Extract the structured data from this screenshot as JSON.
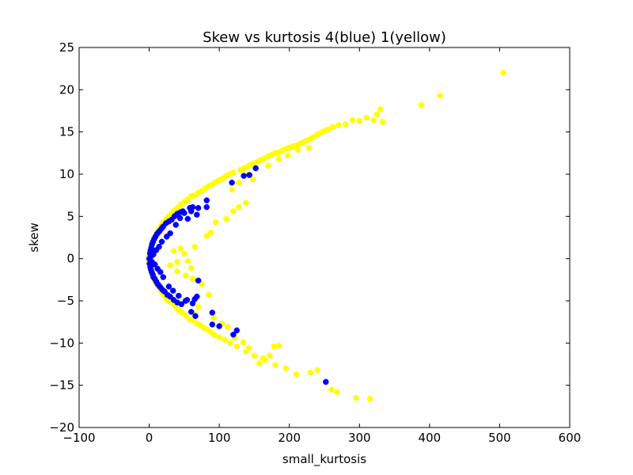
{
  "chart_data": {
    "type": "scatter",
    "title": "Skew vs kurtosis 4(blue) 1(yellow)",
    "xlabel": "small_kurtosis",
    "ylabel": "skew",
    "xlim": [
      -100,
      600
    ],
    "ylim": [
      -20,
      25
    ],
    "xticks": [
      -100,
      0,
      100,
      200,
      300,
      400,
      500,
      600
    ],
    "yticks": [
      -20,
      -15,
      -10,
      -5,
      0,
      5,
      10,
      15,
      20,
      25
    ],
    "xtick_labels": [
      "−100",
      "0",
      "100",
      "200",
      "300",
      "400",
      "500",
      "600"
    ],
    "ytick_labels": [
      "−20",
      "−15",
      "−10",
      "−5",
      "0",
      "5",
      "10",
      "15",
      "20",
      "25"
    ],
    "grid": false,
    "legend": "none",
    "series": [
      {
        "color": "#ffff00",
        "points": [
          [
            0.0,
            -0.5
          ],
          [
            0.5,
            0.4
          ],
          [
            1.0,
            -0.9
          ],
          [
            1.5,
            0.8
          ],
          [
            2.0,
            -1.2
          ],
          [
            2.5,
            1.1
          ],
          [
            3.0,
            -0.2
          ],
          [
            4.0,
            1.6
          ],
          [
            4.5,
            -1.7
          ],
          [
            5.0,
            2.0
          ],
          [
            6.0,
            -2.1
          ],
          [
            7.0,
            2.4
          ],
          [
            8.0,
            -2.6
          ],
          [
            9.0,
            2.7
          ],
          [
            10.0,
            -2.9
          ],
          [
            11.0,
            3.1
          ],
          [
            12.0,
            -3.2
          ],
          [
            14.0,
            3.5
          ],
          [
            15.0,
            -3.6
          ],
          [
            17.0,
            3.9
          ],
          [
            18.0,
            -4.0
          ],
          [
            20.0,
            4.3
          ],
          [
            22.0,
            -4.4
          ],
          [
            24.0,
            4.7
          ],
          [
            25.0,
            -4.9
          ],
          [
            28.0,
            5.0
          ],
          [
            30.0,
            -5.1
          ],
          [
            32.0,
            5.4
          ],
          [
            34.0,
            -5.3
          ],
          [
            36.0,
            5.7
          ],
          [
            38.0,
            -5.8
          ],
          [
            40.0,
            6.0
          ],
          [
            42.0,
            -6.1
          ],
          [
            45.0,
            6.4
          ],
          [
            47.0,
            -6.4
          ],
          [
            50.0,
            6.7
          ],
          [
            53.0,
            -6.8
          ],
          [
            55.0,
            7.0
          ],
          [
            58.0,
            -7.2
          ],
          [
            60.0,
            7.4
          ],
          [
            63.0,
            -7.3
          ],
          [
            65.0,
            7.5
          ],
          [
            68.0,
            -7.7
          ],
          [
            70.0,
            7.8
          ],
          [
            73.0,
            -7.9
          ],
          [
            75.0,
            8.0
          ],
          [
            78.0,
            -8.2
          ],
          [
            80.0,
            8.3
          ],
          [
            83.0,
            -8.4
          ],
          [
            85.0,
            8.6
          ],
          [
            88.0,
            -8.7
          ],
          [
            90.0,
            8.8
          ],
          [
            93.0,
            -9.0
          ],
          [
            95.0,
            9.1
          ],
          [
            100.0,
            9.3
          ],
          [
            100.0,
            -9.3
          ],
          [
            105.0,
            9.5
          ],
          [
            108.0,
            -9.6
          ],
          [
            110.0,
            9.8
          ],
          [
            115.0,
            10.0
          ],
          [
            115.0,
            -10.0
          ],
          [
            120.0,
            10.2
          ],
          [
            125.0,
            -10.4
          ],
          [
            130.0,
            10.5
          ],
          [
            135.0,
            10.7
          ],
          [
            138.0,
            -11.0
          ],
          [
            140.0,
            10.9
          ],
          [
            145.0,
            11.1
          ],
          [
            150.0,
            11.3
          ],
          [
            150.0,
            -11.5
          ],
          [
            155.0,
            11.5
          ],
          [
            160.0,
            11.7
          ],
          [
            165.0,
            11.9
          ],
          [
            165.0,
            -12.0
          ],
          [
            170.0,
            12.1
          ],
          [
            175.0,
            12.3
          ],
          [
            180.0,
            12.5
          ],
          [
            180.0,
            -12.6
          ],
          [
            185.0,
            12.6
          ],
          [
            190.0,
            12.8
          ],
          [
            195.0,
            13.0
          ],
          [
            195.0,
            -13.0
          ],
          [
            200.0,
            13.1
          ],
          [
            205.0,
            13.3
          ],
          [
            210.0,
            13.4
          ],
          [
            210.0,
            -13.7
          ],
          [
            215.0,
            13.6
          ],
          [
            220.0,
            13.8
          ],
          [
            225.0,
            14.0
          ],
          [
            230.0,
            -13.5
          ],
          [
            230.0,
            14.2
          ],
          [
            235.0,
            14.4
          ],
          [
            240.0,
            14.7
          ],
          [
            240.0,
            -13.2
          ],
          [
            245.0,
            14.9
          ],
          [
            250.0,
            15.1
          ],
          [
            255.0,
            15.3
          ],
          [
            260.0,
            -15.5
          ],
          [
            262.0,
            15.6
          ],
          [
            270.0,
            15.8
          ],
          [
            268.0,
            -15.8
          ],
          [
            280.0,
            15.9
          ],
          [
            290.0,
            16.4
          ],
          [
            295.0,
            -16.5
          ],
          [
            300.0,
            16.3
          ],
          [
            310.0,
            16.7
          ],
          [
            315.0,
            -16.6
          ],
          [
            320.0,
            16.4
          ],
          [
            325.0,
            17.1
          ],
          [
            330.0,
            17.7
          ],
          [
            333.0,
            16.2
          ],
          [
            388.0,
            18.2
          ],
          [
            415.0,
            19.3
          ],
          [
            505.0,
            22.0
          ],
          [
            120.0,
            5.6
          ],
          [
            128.0,
            6.1
          ],
          [
            138.0,
            6.6
          ],
          [
            110.0,
            4.7
          ],
          [
            95.0,
            4.3
          ],
          [
            88.0,
            3.1
          ],
          [
            82.0,
            2.7
          ],
          [
            65.0,
            1.4
          ],
          [
            60.0,
            -1.1
          ],
          [
            55.0,
            -0.3
          ],
          [
            50.0,
            0.6
          ],
          [
            45.0,
            1.2
          ],
          [
            40.0,
            -0.4
          ],
          [
            35.0,
            0.9
          ],
          [
            30.0,
            -0.8
          ],
          [
            40.0,
            -1.5
          ],
          [
            52.0,
            -2.0
          ],
          [
            62.0,
            -2.4
          ],
          [
            75.0,
            -3.0
          ],
          [
            85.0,
            -4.3
          ],
          [
            70.0,
            -5.7
          ],
          [
            65.0,
            -6.6
          ],
          [
            92.0,
            -7.0
          ],
          [
            104.0,
            -7.7
          ],
          [
            112.0,
            -8.1
          ],
          [
            122.0,
            -9.4
          ],
          [
            134.0,
            -9.9
          ],
          [
            142.0,
            -10.6
          ],
          [
            157.0,
            -12.4
          ],
          [
            172.0,
            -11.5
          ],
          [
            178.0,
            -10.4
          ],
          [
            185.0,
            -10.3
          ],
          [
            162.0,
            -11.8
          ],
          [
            142.0,
            10.0
          ],
          [
            128.0,
            9.0
          ],
          [
            118.0,
            8.2
          ],
          [
            170.0,
            11.0
          ],
          [
            185.0,
            11.8
          ],
          [
            198.0,
            12.2
          ],
          [
            148.0,
            9.4
          ],
          [
            212.0,
            12.9
          ],
          [
            228.0,
            13.1
          ]
        ]
      },
      {
        "color": "#0000ff",
        "points": [
          [
            0.0,
            0.0
          ],
          [
            0.5,
            -0.6
          ],
          [
            1.0,
            0.6
          ],
          [
            1.5,
            -1.0
          ],
          [
            2.0,
            1.0
          ],
          [
            2.5,
            -1.3
          ],
          [
            3.0,
            1.3
          ],
          [
            3.5,
            -1.6
          ],
          [
            4.0,
            1.7
          ],
          [
            5.0,
            -1.9
          ],
          [
            5.5,
            2.0
          ],
          [
            6.0,
            -2.2
          ],
          [
            7.0,
            2.3
          ],
          [
            8.0,
            -2.4
          ],
          [
            9.0,
            2.6
          ],
          [
            10.0,
            -2.7
          ],
          [
            11.0,
            2.9
          ],
          [
            12.0,
            -3.0
          ],
          [
            13.0,
            3.1
          ],
          [
            14.0,
            -3.2
          ],
          [
            15.0,
            3.3
          ],
          [
            16.0,
            -3.4
          ],
          [
            18.0,
            3.6
          ],
          [
            19.0,
            -3.7
          ],
          [
            20.0,
            3.8
          ],
          [
            22.0,
            -3.9
          ],
          [
            24.0,
            4.2
          ],
          [
            26.0,
            -4.3
          ],
          [
            28.0,
            4.4
          ],
          [
            30.0,
            -4.5
          ],
          [
            32.0,
            4.6
          ],
          [
            35.0,
            -4.9
          ],
          [
            36.0,
            5.0
          ],
          [
            40.0,
            -5.2
          ],
          [
            40.0,
            5.3
          ],
          [
            45.0,
            5.5
          ],
          [
            46.0,
            -5.4
          ],
          [
            48.0,
            5.6
          ],
          [
            52.0,
            -5.0
          ],
          [
            55.0,
            4.7
          ],
          [
            60.0,
            5.6
          ],
          [
            62.0,
            6.1
          ],
          [
            65.0,
            -4.8
          ],
          [
            68.0,
            5.2
          ],
          [
            70.0,
            6.0
          ],
          [
            68.0,
            -4.5
          ],
          [
            60.0,
            -6.3
          ],
          [
            66.0,
            -6.8
          ],
          [
            70.0,
            -2.6
          ],
          [
            82.0,
            6.9
          ],
          [
            82.0,
            6.1
          ],
          [
            90.0,
            -6.4
          ],
          [
            90.0,
            -7.8
          ],
          [
            100.0,
            -8.0
          ],
          [
            118.0,
            9.0
          ],
          [
            120.0,
            -9.0
          ],
          [
            125.0,
            -8.5
          ],
          [
            135.0,
            9.8
          ],
          [
            143.0,
            9.9
          ],
          [
            152.0,
            10.7
          ],
          [
            252.0,
            -14.6
          ],
          [
            3.0,
            0.3
          ],
          [
            4.0,
            -0.4
          ],
          [
            6.0,
            0.5
          ],
          [
            8.0,
            -0.7
          ],
          [
            10.0,
            1.0
          ],
          [
            12.0,
            -1.2
          ],
          [
            14.0,
            1.4
          ],
          [
            16.0,
            -1.6
          ],
          [
            18.0,
            2.0
          ],
          [
            20.0,
            -2.2
          ],
          [
            25.0,
            2.6
          ],
          [
            28.0,
            -3.3
          ],
          [
            30.0,
            3.0
          ],
          [
            34.0,
            -3.8
          ],
          [
            38.0,
            4.0
          ],
          [
            42.0,
            -4.4
          ],
          [
            44.0,
            4.8
          ],
          [
            50.0,
            5.4
          ],
          [
            54.0,
            -4.9
          ],
          [
            58.0,
            6.0
          ],
          [
            62.0,
            -5.3
          ]
        ]
      }
    ]
  }
}
